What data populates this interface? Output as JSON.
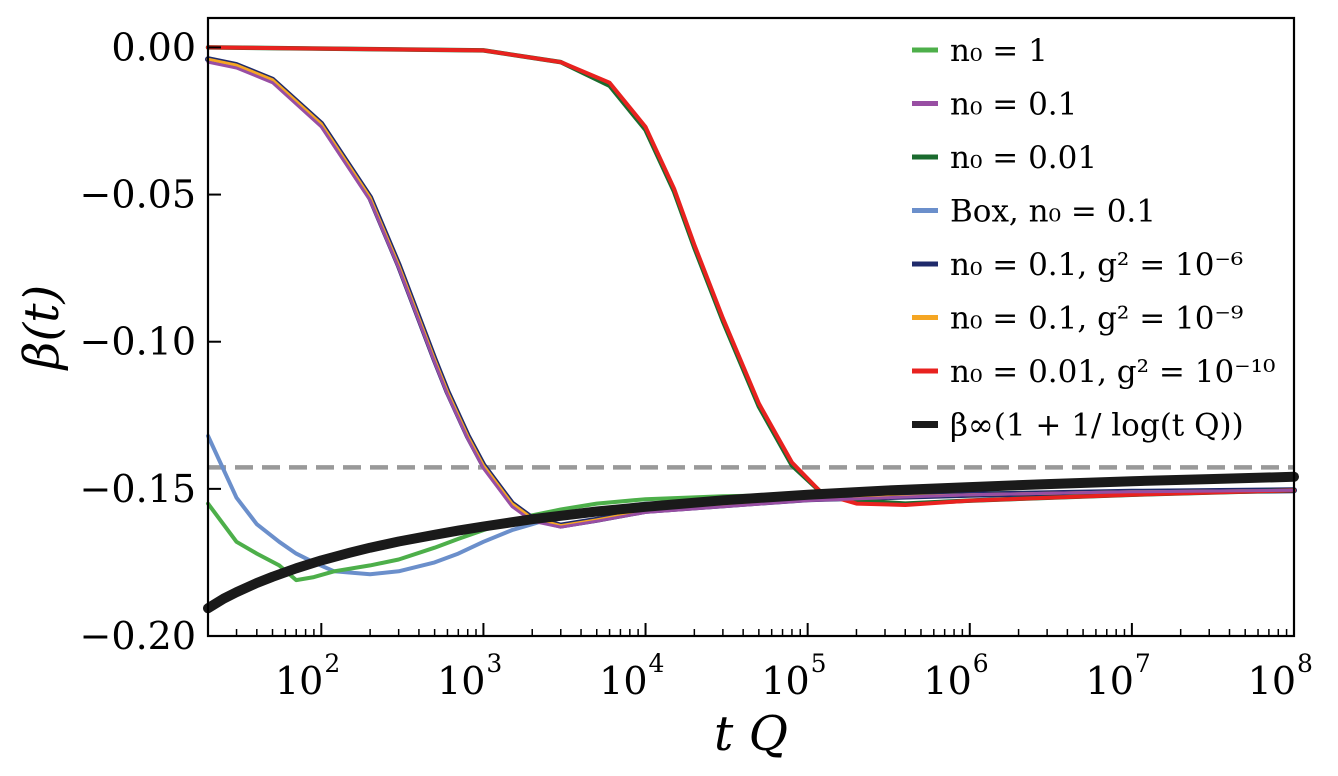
{
  "chart_data": {
    "type": "line",
    "xscale": "log",
    "xlim": [
      20,
      100000000
    ],
    "ylim": [
      -0.2,
      0.01
    ],
    "xlabel": "t Q",
    "ylabel": "β(t)",
    "legend_position": "upper-right",
    "grid": false,
    "xtick_labels": [
      {
        "value": 100,
        "base": "10",
        "exp": "2"
      },
      {
        "value": 1000,
        "base": "10",
        "exp": "3"
      },
      {
        "value": 10000,
        "base": "10",
        "exp": "4"
      },
      {
        "value": 100000,
        "base": "10",
        "exp": "5"
      },
      {
        "value": 1000000,
        "base": "10",
        "exp": "6"
      },
      {
        "value": 10000000,
        "base": "10",
        "exp": "7"
      },
      {
        "value": 100000000,
        "base": "10",
        "exp": "8"
      }
    ],
    "ytick_labels": [
      {
        "value": 0.0,
        "label": "0.00"
      },
      {
        "value": -0.05,
        "label": "−0.05"
      },
      {
        "value": -0.1,
        "label": "−0.10"
      },
      {
        "value": -0.15,
        "label": "−0.15"
      },
      {
        "value": -0.2,
        "label": "−0.20"
      }
    ],
    "reference_line": {
      "y": -0.1427,
      "style": "dashed",
      "color": "#999999"
    },
    "series": [
      {
        "name": "n₀ = 1",
        "color": "#4daf4a",
        "x": [
          20,
          30,
          40,
          55,
          70,
          90,
          120,
          200,
          300,
          500,
          700,
          1000,
          1500,
          2000,
          3000,
          5000,
          10000,
          30000,
          100000,
          1000000,
          10000000,
          100000000
        ],
        "y": [
          -0.155,
          -0.168,
          -0.172,
          -0.176,
          -0.181,
          -0.18,
          -0.178,
          -0.176,
          -0.174,
          -0.17,
          -0.167,
          -0.164,
          -0.161,
          -0.159,
          -0.157,
          -0.155,
          -0.1535,
          -0.1525,
          -0.152,
          -0.1515,
          -0.151,
          -0.1505
        ]
      },
      {
        "name": "n₀ = 0.1",
        "color": "#984ea3",
        "x": [
          20,
          30,
          50,
          100,
          200,
          300,
          400,
          500,
          600,
          800,
          1000,
          1500,
          2000,
          3000,
          5000,
          10000,
          100000,
          1000000,
          10000000,
          100000000
        ],
        "y": [
          -0.005,
          -0.007,
          -0.012,
          -0.027,
          -0.052,
          -0.075,
          -0.093,
          -0.107,
          -0.118,
          -0.133,
          -0.143,
          -0.156,
          -0.161,
          -0.163,
          -0.161,
          -0.158,
          -0.154,
          -0.152,
          -0.151,
          -0.1505
        ]
      },
      {
        "name": "n₀ = 0.01",
        "color": "#1a6b2e",
        "x": [
          20,
          1000,
          3000,
          6000,
          10000,
          15000,
          20000,
          30000,
          50000,
          80000,
          120000,
          200000,
          400000,
          1000000,
          10000000,
          100000000
        ],
        "y": [
          0.0,
          -0.001,
          -0.005,
          -0.013,
          -0.028,
          -0.049,
          -0.068,
          -0.093,
          -0.122,
          -0.142,
          -0.151,
          -0.154,
          -0.155,
          -0.154,
          -0.152,
          -0.1505
        ]
      },
      {
        "name": "Box, n₀ = 0.1",
        "color": "#6b8fcb",
        "x": [
          20,
          30,
          40,
          55,
          70,
          90,
          120,
          200,
          300,
          500,
          700,
          1000,
          1500,
          2000,
          3000,
          5000,
          10000,
          100000,
          1000000,
          10000000,
          100000000
        ],
        "y": [
          -0.132,
          -0.153,
          -0.162,
          -0.168,
          -0.172,
          -0.175,
          -0.178,
          -0.179,
          -0.178,
          -0.175,
          -0.172,
          -0.168,
          -0.164,
          -0.162,
          -0.159,
          -0.157,
          -0.155,
          -0.153,
          -0.152,
          -0.151,
          -0.1505
        ]
      },
      {
        "name": "n₀ = 0.1, g² = 10⁻⁶",
        "color": "#1f2a6b",
        "x": [
          20,
          30,
          50,
          100,
          200,
          300,
          400,
          500,
          600,
          800,
          1000,
          1500,
          2000,
          3000,
          5000,
          10000,
          100000,
          1000000,
          10000000,
          100000000
        ],
        "y": [
          -0.004,
          -0.006,
          -0.011,
          -0.026,
          -0.051,
          -0.074,
          -0.092,
          -0.106,
          -0.117,
          -0.132,
          -0.142,
          -0.155,
          -0.16,
          -0.1625,
          -0.1605,
          -0.1575,
          -0.1535,
          -0.152,
          -0.151,
          -0.1505
        ]
      },
      {
        "name": "n₀ = 0.1, g² = 10⁻⁹",
        "color": "#f5a623",
        "x": [
          20,
          30,
          50,
          100,
          200,
          300,
          400,
          500,
          600,
          800,
          1000,
          1500,
          2000,
          3000,
          5000,
          10000,
          100000,
          1000000,
          10000000,
          100000000
        ],
        "y": [
          -0.004,
          -0.006,
          -0.011,
          -0.026,
          -0.051,
          -0.074,
          -0.092,
          -0.106,
          -0.117,
          -0.132,
          -0.142,
          -0.155,
          -0.16,
          -0.1625,
          -0.1605,
          -0.1575,
          -0.1535,
          -0.152,
          -0.151,
          -0.1505
        ]
      },
      {
        "name": "n₀ = 0.01, g² = 10⁻¹⁰",
        "color": "#e8221f",
        "x": [
          20,
          1000,
          3000,
          6000,
          10000,
          15000,
          20000,
          30000,
          50000,
          80000,
          120000,
          150000,
          200000,
          400000,
          1000000,
          10000000,
          100000000
        ],
        "y": [
          0.0,
          -0.001,
          -0.005,
          -0.012,
          -0.027,
          -0.048,
          -0.067,
          -0.092,
          -0.121,
          -0.141,
          -0.151,
          -0.153,
          -0.155,
          -0.1555,
          -0.154,
          -0.152,
          -0.1505
        ]
      },
      {
        "name": "β∞(1 + 1/ log(t Q))",
        "color": "#1a1a1a",
        "x": [
          20,
          25,
          30,
          40,
          50,
          70,
          100,
          150,
          200,
          300,
          500,
          700,
          1000,
          2000,
          5000,
          10000,
          30000,
          100000,
          300000,
          1000000,
          3000000,
          10000000,
          30000000,
          100000000
        ],
        "y": [
          -0.1906,
          -0.1873,
          -0.1851,
          -0.182,
          -0.1799,
          -0.177,
          -0.1743,
          -0.1717,
          -0.17,
          -0.1679,
          -0.1656,
          -0.1642,
          -0.1628,
          -0.1603,
          -0.1577,
          -0.1561,
          -0.1539,
          -0.152,
          -0.1506,
          -0.1494,
          -0.1484,
          -0.1474,
          -0.1467,
          -0.1459
        ]
      }
    ]
  }
}
